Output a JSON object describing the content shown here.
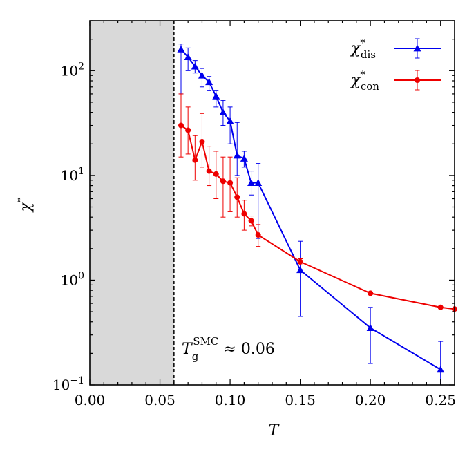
{
  "chart_data": {
    "type": "line",
    "xlabel": "T",
    "ylabel": "χ*",
    "yscale": "log",
    "xlim": [
      0.0,
      0.26
    ],
    "ylim": [
      0.1,
      300
    ],
    "x_ticks": [
      {
        "value": 0.0,
        "label": "0.00"
      },
      {
        "value": 0.05,
        "label": "0.05"
      },
      {
        "value": 0.1,
        "label": "0.10"
      },
      {
        "value": 0.15,
        "label": "0.15"
      },
      {
        "value": 0.2,
        "label": "0.20"
      },
      {
        "value": 0.25,
        "label": "0.25"
      }
    ],
    "y_ticks": [
      {
        "value": 0.1,
        "base": "10",
        "exp": "−1"
      },
      {
        "value": 1,
        "base": "10",
        "exp": "0"
      },
      {
        "value": 10,
        "base": "10",
        "exp": "1"
      },
      {
        "value": 100,
        "base": "10",
        "exp": "2"
      }
    ],
    "shaded_region": {
      "from": 0.0,
      "to": 0.06,
      "color": "#d9d9d9"
    },
    "vline": {
      "x": 0.06,
      "style": "dashed"
    },
    "annotation": {
      "text": "T",
      "sub": "g",
      "sup": "SMC",
      "rest": " ≈ 0.06"
    },
    "legend_position": "top-right",
    "series": [
      {
        "name": "χ*dis",
        "legend_base": "χ",
        "legend_sup": "*",
        "legend_sub": "dis",
        "color": "#0000ee",
        "marker": "triangle",
        "points": [
          {
            "x": 0.065,
            "y": 160,
            "lo": 60,
            "hi": 180
          },
          {
            "x": 0.07,
            "y": 135,
            "lo": 100,
            "hi": 165
          },
          {
            "x": 0.075,
            "y": 110,
            "lo": 95,
            "hi": 125
          },
          {
            "x": 0.08,
            "y": 90,
            "lo": 70,
            "hi": 105
          },
          {
            "x": 0.085,
            "y": 78,
            "lo": 65,
            "hi": 88
          },
          {
            "x": 0.09,
            "y": 57,
            "lo": 45,
            "hi": 65
          },
          {
            "x": 0.095,
            "y": 40,
            "lo": 30,
            "hi": 52
          },
          {
            "x": 0.1,
            "y": 33,
            "lo": 20,
            "hi": 45
          },
          {
            "x": 0.105,
            "y": 15.5,
            "lo": 10,
            "hi": 32
          },
          {
            "x": 0.11,
            "y": 14.5,
            "lo": 12,
            "hi": 17
          },
          {
            "x": 0.115,
            "y": 8.5,
            "lo": 6.5,
            "hi": 11
          },
          {
            "x": 0.12,
            "y": 8.5,
            "lo": 2.5,
            "hi": 13
          },
          {
            "x": 0.15,
            "y": 1.25,
            "lo": 0.45,
            "hi": 2.35
          },
          {
            "x": 0.2,
            "y": 0.35,
            "lo": 0.16,
            "hi": 0.55
          },
          {
            "x": 0.25,
            "y": 0.14,
            "lo": 0.1,
            "hi": 0.26
          }
        ]
      },
      {
        "name": "χ*con",
        "legend_base": "χ",
        "legend_sup": "*",
        "legend_sub": "con",
        "color": "#ee0000",
        "marker": "circle",
        "points": [
          {
            "x": 0.065,
            "y": 30,
            "lo": 15,
            "hi": 60
          },
          {
            "x": 0.07,
            "y": 27,
            "lo": 16,
            "hi": 45
          },
          {
            "x": 0.075,
            "y": 14,
            "lo": 9,
            "hi": 24
          },
          {
            "x": 0.08,
            "y": 21,
            "lo": 12,
            "hi": 39
          },
          {
            "x": 0.085,
            "y": 11,
            "lo": 8,
            "hi": 19
          },
          {
            "x": 0.09,
            "y": 10.3,
            "lo": 6,
            "hi": 17
          },
          {
            "x": 0.095,
            "y": 8.8,
            "lo": 4,
            "hi": 15
          },
          {
            "x": 0.1,
            "y": 8.5,
            "lo": 4.5,
            "hi": 15
          },
          {
            "x": 0.105,
            "y": 6.2,
            "lo": 4,
            "hi": 9.5
          },
          {
            "x": 0.11,
            "y": 4.3,
            "lo": 3,
            "hi": 5.8
          },
          {
            "x": 0.115,
            "y": 3.7,
            "lo": 3.3,
            "hi": 4.1
          },
          {
            "x": 0.12,
            "y": 2.7,
            "lo": 2.1,
            "hi": 3.4
          },
          {
            "x": 0.15,
            "y": 1.5,
            "lo": 1.4,
            "hi": 1.6
          },
          {
            "x": 0.2,
            "y": 0.75,
            "lo": 0.73,
            "hi": 0.77
          },
          {
            "x": 0.25,
            "y": 0.55,
            "lo": 0.54,
            "hi": 0.56
          },
          {
            "x": 0.26,
            "y": 0.53
          }
        ]
      }
    ]
  }
}
